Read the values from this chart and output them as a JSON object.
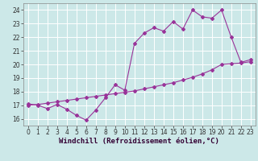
{
  "xlabel": "Windchill (Refroidissement éolien,°C)",
  "bg_color": "#cce8e8",
  "grid_color": "#ffffff",
  "line_color": "#993399",
  "line1_x": [
    0,
    1,
    2,
    3,
    4,
    5,
    6,
    7,
    8,
    9,
    10,
    11,
    12,
    13,
    14,
    15,
    16,
    17,
    18,
    19,
    20,
    21,
    22,
    23
  ],
  "line1_y": [
    17.0,
    17.05,
    17.15,
    17.25,
    17.35,
    17.45,
    17.55,
    17.65,
    17.75,
    17.85,
    17.95,
    18.05,
    18.2,
    18.35,
    18.5,
    18.65,
    18.85,
    19.05,
    19.3,
    19.6,
    20.0,
    20.05,
    20.1,
    20.2
  ],
  "line2_x": [
    0,
    1,
    2,
    3,
    4,
    5,
    6,
    7,
    8,
    9,
    10,
    11,
    12,
    13,
    14,
    15,
    16,
    17,
    18,
    19,
    20,
    21,
    22,
    23
  ],
  "line2_y": [
    17.1,
    17.0,
    16.75,
    17.05,
    16.7,
    16.25,
    15.9,
    16.65,
    17.55,
    18.5,
    18.1,
    21.55,
    22.3,
    22.7,
    22.45,
    23.15,
    22.6,
    24.0,
    23.5,
    23.4,
    24.0,
    22.0,
    20.15,
    20.35
  ],
  "xlim": [
    -0.5,
    23.5
  ],
  "ylim": [
    15.5,
    24.5
  ],
  "yticks": [
    16,
    17,
    18,
    19,
    20,
    21,
    22,
    23,
    24
  ],
  "xticks": [
    0,
    1,
    2,
    3,
    4,
    5,
    6,
    7,
    8,
    9,
    10,
    11,
    12,
    13,
    14,
    15,
    16,
    17,
    18,
    19,
    20,
    21,
    22,
    23
  ],
  "xtick_labels": [
    "0",
    "1",
    "2",
    "3",
    "4",
    "5",
    "6",
    "7",
    "8",
    "9",
    "10",
    "11",
    "12",
    "13",
    "14",
    "15",
    "16",
    "17",
    "18",
    "19",
    "20",
    "21",
    "22",
    "23"
  ],
  "tick_fontsize": 5.5,
  "xlabel_fontsize": 6.5,
  "marker": "D",
  "markersize": 2.0,
  "linewidth": 0.8
}
